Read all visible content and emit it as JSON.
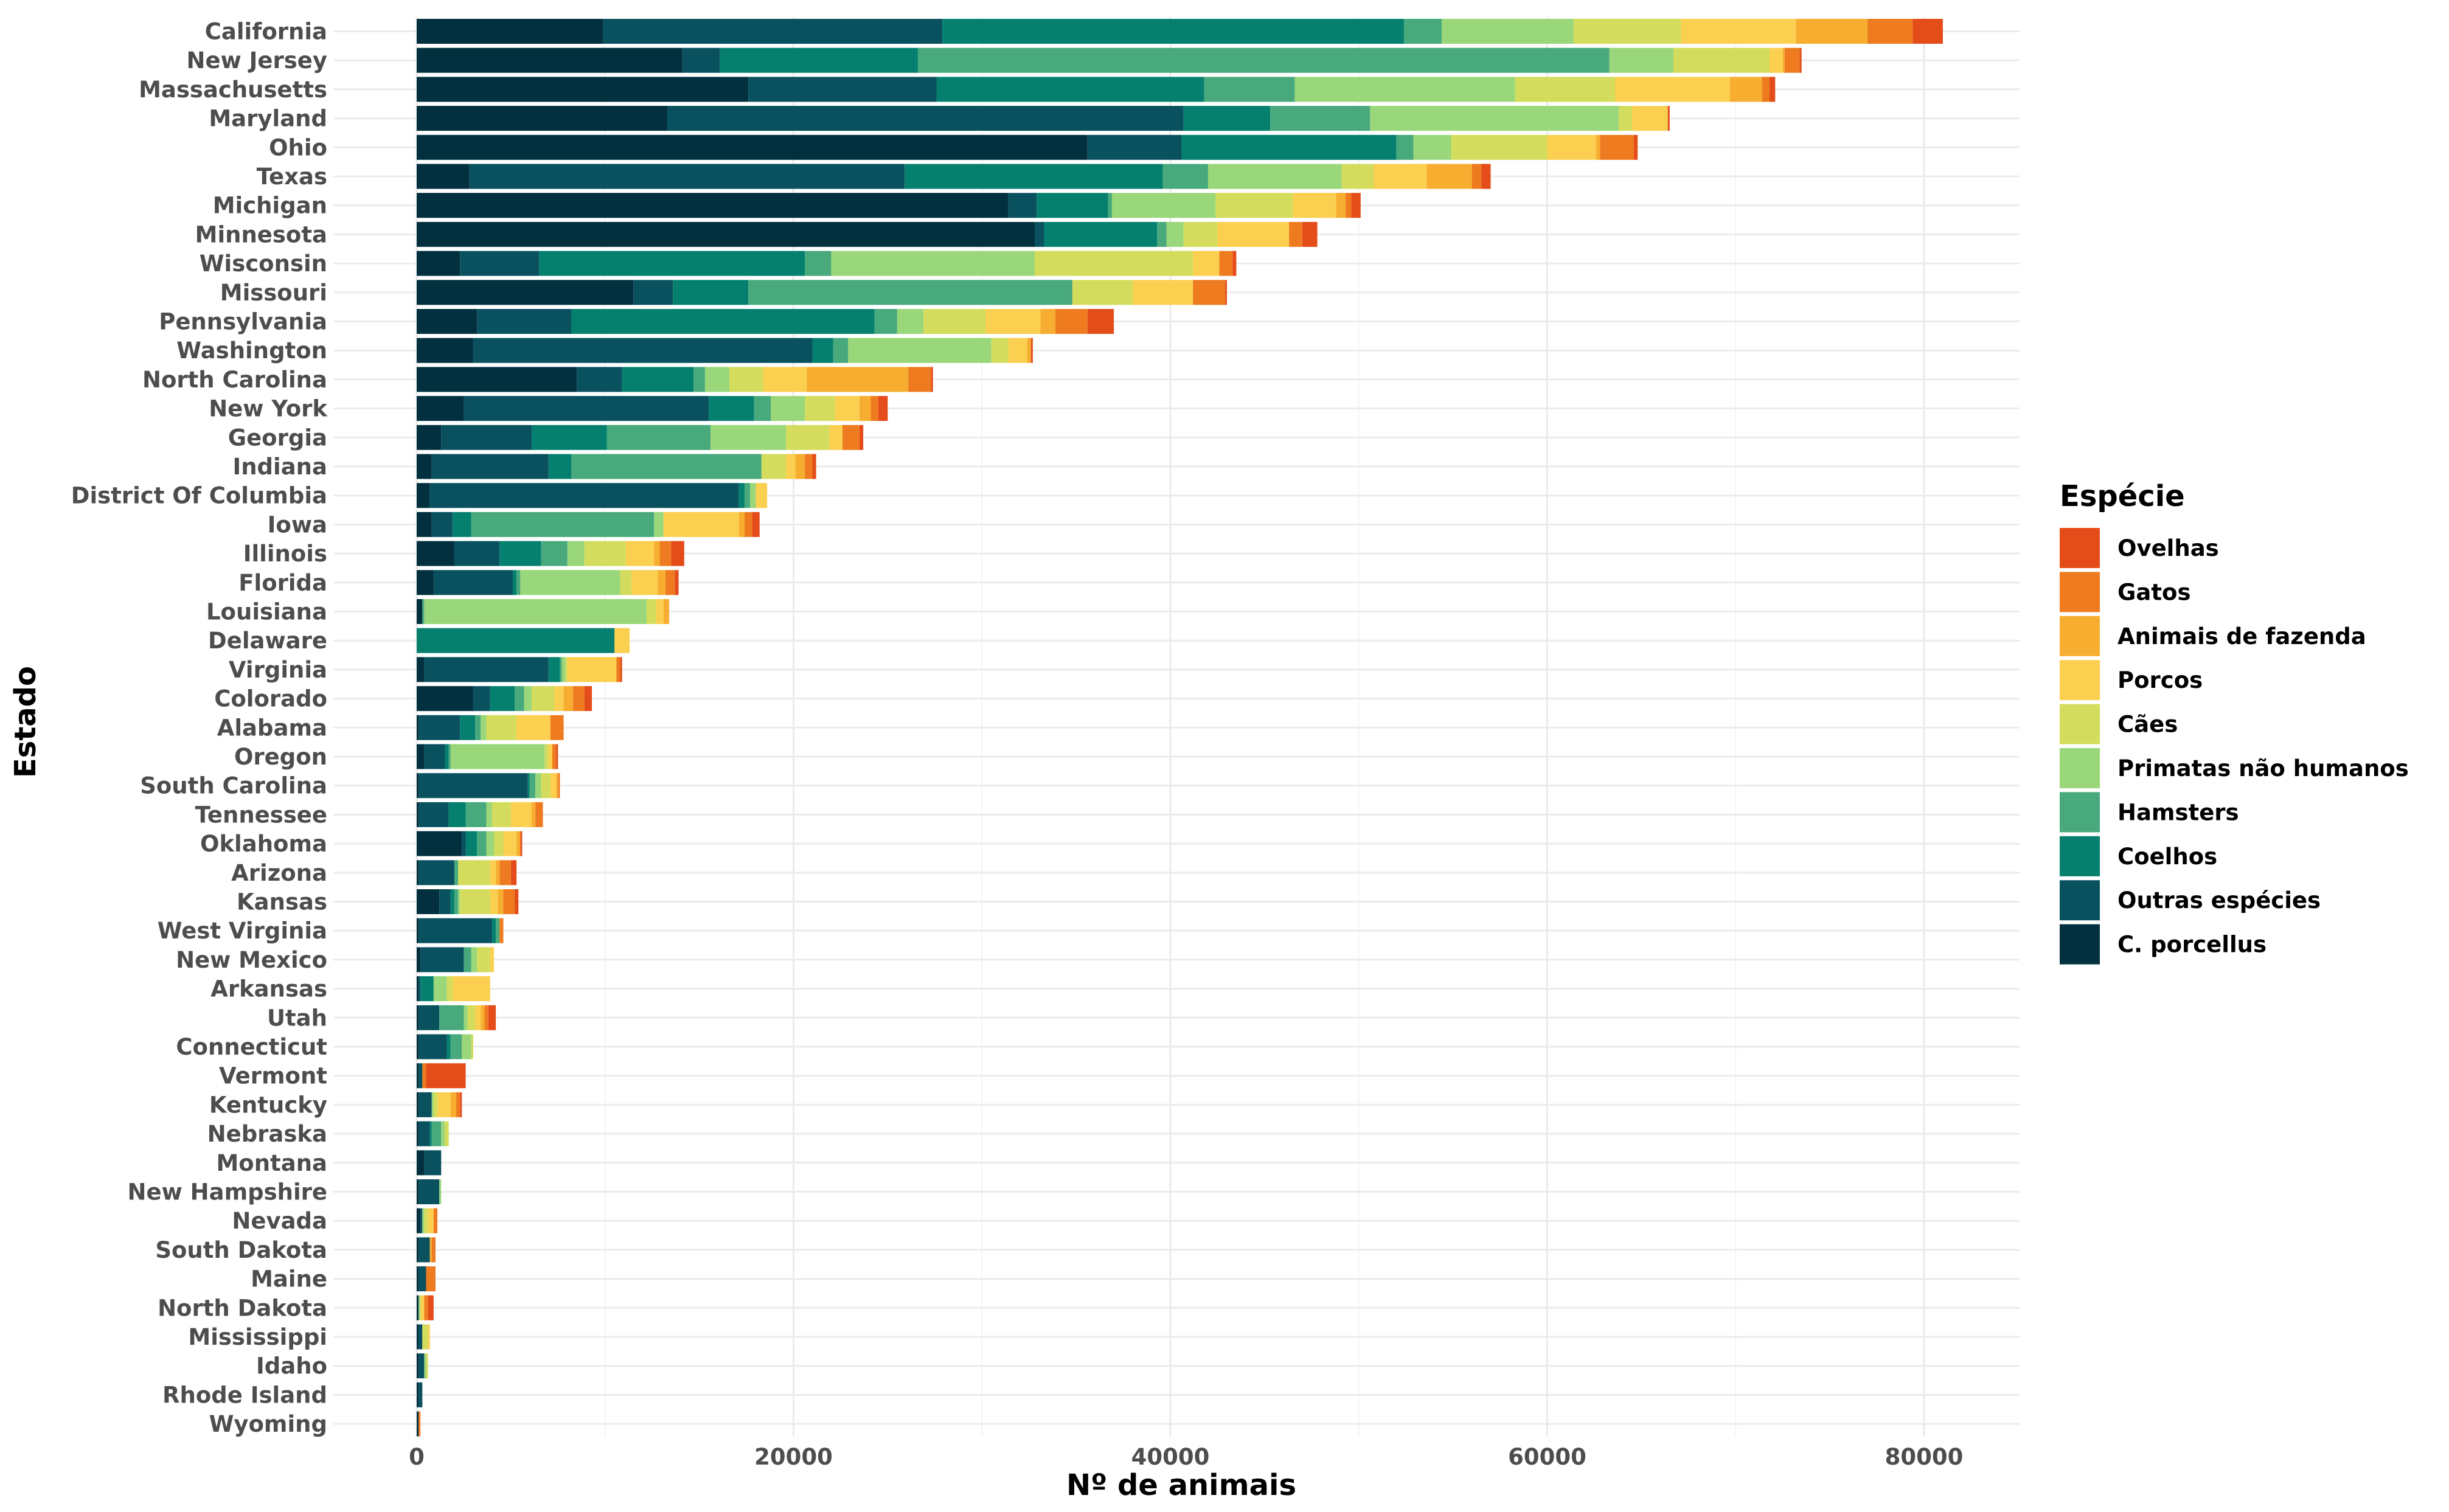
{
  "chart_data": {
    "type": "bar",
    "orientation": "horizontal",
    "stacked": true,
    "xlabel": "Nº de animais",
    "ylabel": "Estado",
    "xlim": [
      0,
      85000
    ],
    "x_ticks": [
      0,
      20000,
      40000,
      60000,
      80000
    ],
    "x_tick_labels": [
      "0",
      "20000",
      "40000",
      "60000",
      "80000"
    ],
    "grid": true,
    "legend": {
      "title": "Espécie",
      "position": "right"
    },
    "species_stack_order": [
      "C. porcellus",
      "Outras espécies",
      "Coelhos",
      "Hamsters",
      "Primatas não humanos",
      "Cães",
      "Porcos",
      "Animais de fazenda",
      "Gatos",
      "Ovelhas"
    ],
    "legend_order": [
      "Ovelhas",
      "Gatos",
      "Animais de fazenda",
      "Porcos",
      "Cães",
      "Primatas não humanos",
      "Hamsters",
      "Coelhos",
      "Outras espécies",
      "C. porcellus"
    ],
    "colors": {
      "C. porcellus": "#03303f",
      "Outras espécies": "#0a5160",
      "Coelhos": "#05806f",
      "Hamsters": "#48a97c",
      "Primatas não humanos": "#9ad77a",
      "Cães": "#d3dc5c",
      "Porcos": "#fbcf4f",
      "Animais de fazenda": "#f7ae30",
      "Gatos": "#ee7b1f",
      "Ovelhas": "#e44d1a"
    },
    "categories": [
      "California",
      "New Jersey",
      "Massachusetts",
      "Maryland",
      "Ohio",
      "Texas",
      "Michigan",
      "Minnesota",
      "Wisconsin",
      "Missouri",
      "Pennsylvania",
      "Washington",
      "North Carolina",
      "New York",
      "Georgia",
      "Indiana",
      "District Of Columbia",
      "Iowa",
      "Illinois",
      "Florida",
      "Louisiana",
      "Delaware",
      "Virginia",
      "Colorado",
      "Alabama",
      "Oregon",
      "South Carolina",
      "Tennessee",
      "Oklahoma",
      "Arizona",
      "Kansas",
      "West Virginia",
      "New Mexico",
      "Arkansas",
      "Utah",
      "Connecticut",
      "Vermont",
      "Kentucky",
      "Nebraska",
      "Montana",
      "New Hampshire",
      "Nevada",
      "South Dakota",
      "Maine",
      "North Dakota",
      "Mississippi",
      "Idaho",
      "Rhode Island",
      "Wyoming"
    ],
    "series": [
      {
        "name": "C. porcellus",
        "values": [
          9900,
          14100,
          17600,
          13300,
          35600,
          2800,
          31400,
          32800,
          2300,
          11500,
          3200,
          3000,
          8500,
          2500,
          1300,
          800,
          700,
          800,
          2000,
          900,
          300,
          0,
          400,
          3000,
          100,
          400,
          100,
          100,
          2400,
          100,
          1200,
          100,
          200,
          100,
          100,
          100,
          100,
          100,
          100,
          400,
          100,
          200,
          100,
          100,
          100,
          100,
          100,
          100,
          100
        ]
      },
      {
        "name": "Outras espécies",
        "values": [
          18000,
          2000,
          10000,
          27400,
          5000,
          23100,
          1500,
          500,
          4200,
          2100,
          5000,
          18000,
          2400,
          13000,
          4800,
          6200,
          16400,
          1100,
          2400,
          4200,
          0,
          0,
          6600,
          900,
          2200,
          1100,
          5800,
          1600,
          200,
          1900,
          600,
          3900,
          2300,
          100,
          1100,
          1500,
          200,
          700,
          600,
          900,
          1100,
          100,
          600,
          400,
          0,
          200,
          300,
          200,
          0
        ]
      },
      {
        "name": "Coelhos",
        "values": [
          24500,
          10500,
          14200,
          4600,
          11400,
          13700,
          3800,
          6000,
          14100,
          4000,
          16100,
          1100,
          3800,
          2400,
          4000,
          1200,
          300,
          1000,
          2200,
          200,
          0,
          10500,
          600,
          1300,
          800,
          200,
          100,
          900,
          600,
          0,
          200,
          200,
          0,
          700,
          0,
          200,
          0,
          0,
          100,
          0,
          0,
          0,
          0,
          0,
          0,
          0,
          0,
          0,
          0
        ]
      },
      {
        "name": "Hamsters",
        "values": [
          2000,
          36700,
          4800,
          5300,
          900,
          2400,
          200,
          500,
          1400,
          17200,
          1200,
          800,
          600,
          900,
          5500,
          10100,
          300,
          9700,
          1400,
          200,
          100,
          0,
          100,
          500,
          300,
          100,
          300,
          1100,
          500,
          200,
          200,
          200,
          400,
          0,
          1300,
          600,
          0,
          0,
          500,
          0,
          0,
          0,
          0,
          0,
          0,
          0,
          0,
          0,
          0
        ]
      },
      {
        "name": "Primatas não humanos",
        "values": [
          7000,
          3400,
          11700,
          13200,
          2000,
          7100,
          5500,
          900,
          10800,
          0,
          1400,
          7600,
          1300,
          1800,
          4000,
          0,
          300,
          500,
          900,
          5300,
          11800,
          0,
          200,
          400,
          300,
          5000,
          300,
          300,
          400,
          0,
          100,
          0,
          300,
          700,
          200,
          500,
          0,
          100,
          200,
          0,
          100,
          100,
          0,
          0,
          100,
          0,
          100,
          0,
          0
        ]
      },
      {
        "name": "Cães",
        "values": [
          5700,
          5100,
          5300,
          700,
          5100,
          1700,
          4100,
          1800,
          8400,
          3200,
          3300,
          900,
          1800,
          1600,
          2300,
          1300,
          0,
          0,
          2200,
          600,
          500,
          0,
          100,
          1200,
          1600,
          200,
          500,
          1000,
          500,
          1700,
          1600,
          0,
          700,
          300,
          400,
          100,
          0,
          200,
          200,
          0,
          0,
          200,
          0,
          0,
          0,
          300,
          100,
          0,
          0
        ]
      },
      {
        "name": "Porcos",
        "values": [
          6100,
          700,
          6100,
          1900,
          2600,
          2800,
          2300,
          3800,
          1400,
          3200,
          2900,
          1000,
          2300,
          1300,
          700,
          500,
          600,
          4000,
          1500,
          1400,
          400,
          800,
          2600,
          500,
          1800,
          200,
          300,
          1100,
          700,
          300,
          400,
          0,
          200,
          2000,
          300,
          0,
          0,
          700,
          0,
          0,
          0,
          300,
          0,
          0,
          200,
          100,
          0,
          0,
          0
        ]
      },
      {
        "name": "Animais de fazenda",
        "values": [
          3800,
          100,
          1700,
          0,
          200,
          2400,
          500,
          0,
          0,
          0,
          800,
          200,
          5400,
          600,
          0,
          500,
          0,
          300,
          300,
          400,
          300,
          0,
          0,
          500,
          0,
          0,
          100,
          200,
          200,
          200,
          300,
          0,
          0,
          0,
          200,
          0,
          0,
          300,
          0,
          0,
          0,
          0,
          100,
          0,
          0,
          0,
          0,
          0,
          0
        ]
      },
      {
        "name": "Gatos",
        "values": [
          2400,
          800,
          400,
          0,
          1800,
          500,
          300,
          700,
          700,
          1700,
          1700,
          0,
          1200,
          400,
          900,
          400,
          0,
          400,
          600,
          500,
          0,
          0,
          200,
          600,
          700,
          200,
          100,
          400,
          0,
          600,
          600,
          200,
          0,
          0,
          200,
          0,
          200,
          200,
          0,
          0,
          0,
          200,
          200,
          500,
          200,
          0,
          0,
          0,
          100
        ]
      },
      {
        "name": "Ovelhas",
        "values": [
          1600,
          100,
          300,
          100,
          200,
          500,
          500,
          800,
          200,
          100,
          1400,
          100,
          100,
          500,
          200,
          200,
          0,
          400,
          700,
          200,
          0,
          0,
          100,
          400,
          0,
          100,
          0,
          0,
          100,
          300,
          200,
          0,
          0,
          0,
          400,
          0,
          2100,
          100,
          0,
          0,
          0,
          0,
          0,
          0,
          300,
          0,
          0,
          0,
          0
        ]
      }
    ]
  }
}
